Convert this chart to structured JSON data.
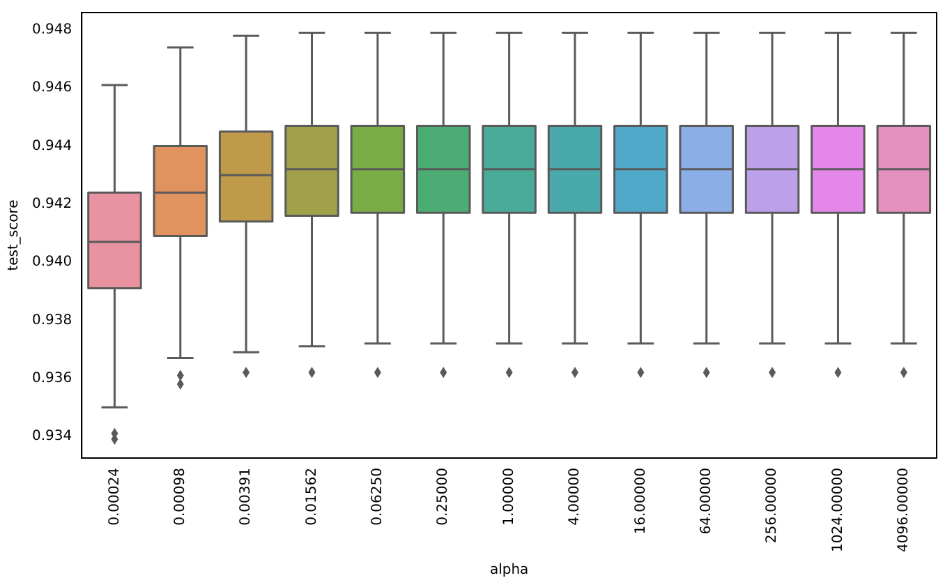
{
  "chart_data": {
    "type": "box",
    "xlabel": "alpha",
    "ylabel": "test_score",
    "categories": [
      "0.00024",
      "0.00098",
      "0.00391",
      "0.01562",
      "0.06250",
      "0.25000",
      "1.00000",
      "4.00000",
      "16.00000",
      "64.00000",
      "256.00000",
      "1024.00000",
      "4096.00000"
    ],
    "colors": [
      "#e8939f",
      "#e0925f",
      "#c09a4b",
      "#a1a04a",
      "#79ac44",
      "#4bad73",
      "#4aab98",
      "#4aa9ab",
      "#50a9c9",
      "#8caee6",
      "#bca0e9",
      "#e487e8",
      "#e591c0"
    ],
    "boxes": [
      {
        "low": 0.935,
        "q1": 0.9391,
        "median": 0.9407,
        "q3": 0.9424,
        "high": 0.9461,
        "outliers": [
          0.9341,
          0.9339
        ]
      },
      {
        "low": 0.9367,
        "q1": 0.9409,
        "median": 0.9424,
        "q3": 0.944,
        "high": 0.9474,
        "outliers": [
          0.9361,
          0.9358
        ]
      },
      {
        "low": 0.9369,
        "q1": 0.9414,
        "median": 0.943,
        "q3": 0.9445,
        "high": 0.9478,
        "outliers": [
          0.9362
        ]
      },
      {
        "low": 0.9371,
        "q1": 0.9416,
        "median": 0.9432,
        "q3": 0.9447,
        "high": 0.9479,
        "outliers": [
          0.9362
        ]
      },
      {
        "low": 0.9372,
        "q1": 0.9417,
        "median": 0.9432,
        "q3": 0.9447,
        "high": 0.9479,
        "outliers": [
          0.9362
        ]
      },
      {
        "low": 0.9372,
        "q1": 0.9417,
        "median": 0.9432,
        "q3": 0.9447,
        "high": 0.9479,
        "outliers": [
          0.9362
        ]
      },
      {
        "low": 0.9372,
        "q1": 0.9417,
        "median": 0.9432,
        "q3": 0.9447,
        "high": 0.9479,
        "outliers": [
          0.9362
        ]
      },
      {
        "low": 0.9372,
        "q1": 0.9417,
        "median": 0.9432,
        "q3": 0.9447,
        "high": 0.9479,
        "outliers": [
          0.9362
        ]
      },
      {
        "low": 0.9372,
        "q1": 0.9417,
        "median": 0.9432,
        "q3": 0.9447,
        "high": 0.9479,
        "outliers": [
          0.9362
        ]
      },
      {
        "low": 0.9372,
        "q1": 0.9417,
        "median": 0.9432,
        "q3": 0.9447,
        "high": 0.9479,
        "outliers": [
          0.9362
        ]
      },
      {
        "low": 0.9372,
        "q1": 0.9417,
        "median": 0.9432,
        "q3": 0.9447,
        "high": 0.9479,
        "outliers": [
          0.9362
        ]
      },
      {
        "low": 0.9372,
        "q1": 0.9417,
        "median": 0.9432,
        "q3": 0.9447,
        "high": 0.9479,
        "outliers": [
          0.9362
        ]
      },
      {
        "low": 0.9372,
        "q1": 0.9417,
        "median": 0.9432,
        "q3": 0.9447,
        "high": 0.9479,
        "outliers": [
          0.9362
        ]
      }
    ],
    "ylim": [
      0.93325,
      0.9486
    ],
    "yticks": [
      0.934,
      0.936,
      0.938,
      {
        "value": 0.94,
        "label": "0.940"
      },
      0.942,
      0.944,
      0.946,
      0.948
    ],
    "grid": false,
    "legend": false
  }
}
